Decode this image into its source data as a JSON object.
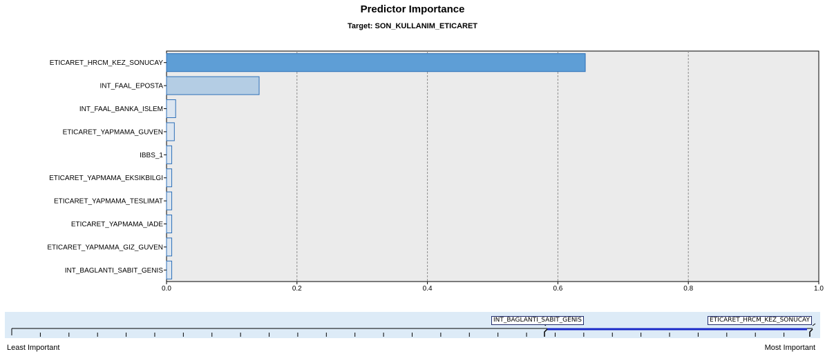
{
  "chart_data": {
    "type": "bar",
    "orientation": "horizontal",
    "title": "Predictor Importance",
    "subtitle": "Target: SON_KULLANIM_ETICARET",
    "categories": [
      "ETICARET_HRCM_KEZ_SONUCAY",
      "INT_FAAL_EPOSTA",
      "INT_FAAL_BANKA_ISLEM",
      "ETICARET_YAPMAMA_GUVEN",
      "IBBS_1",
      "ETICARET_YAPMAMA_EKSIKBILGI",
      "ETICARET_YAPMAMA_TESLIMAT",
      "ETICARET_YAPMAMA_IADE",
      "ETICARET_YAPMAMA_GIZ_GUVEN",
      "INT_BAGLANTI_SABIT_GENIS"
    ],
    "values": [
      0.642,
      0.142,
      0.014,
      0.012,
      0.008,
      0.008,
      0.008,
      0.008,
      0.008,
      0.008
    ],
    "xlim": [
      0,
      1.0
    ],
    "xticks": [
      "0.0",
      "0.2",
      "0.4",
      "0.6",
      "0.8",
      "1.0"
    ],
    "grid": true,
    "colors": {
      "top_bar": "#5e9ed6",
      "second_bar": "#b4cde4",
      "other_bars": "#dce6f1",
      "bar_border": "#2c6fb8",
      "plot_bg": "#ebebeb"
    }
  },
  "slider": {
    "least_label": "Least Important",
    "most_label": "Most Important",
    "range_low_label": "INT_BAGLANTI_SABIT_GENIS",
    "range_high_label": "ETICARET_HRCM_KEZ_SONUCAY",
    "panel_color": "#ddebf7",
    "tick_count": 28
  }
}
